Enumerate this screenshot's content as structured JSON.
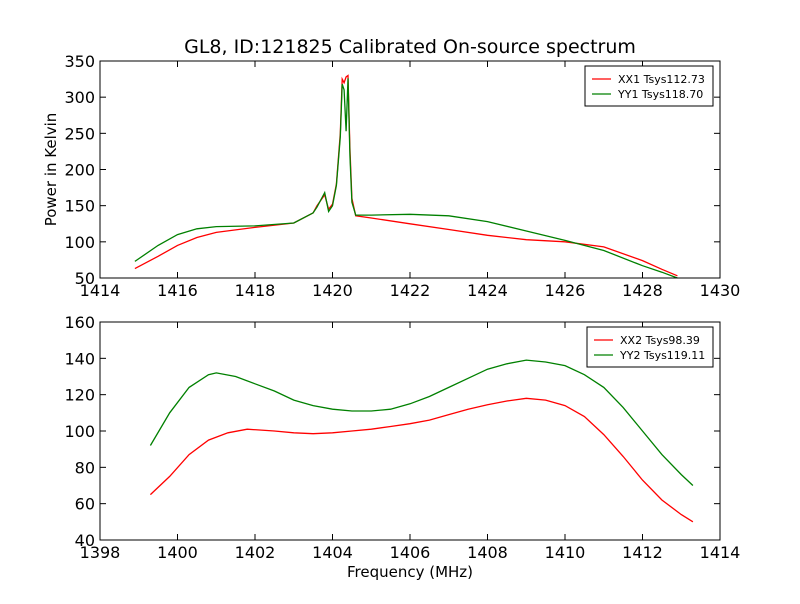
{
  "title": "GL8, ID:121825 Calibrated On-source spectrum",
  "colors": {
    "xx": "#ff0000",
    "yy": "#008000",
    "axis": "#000000",
    "background": "#ffffff"
  },
  "chart_data": [
    {
      "type": "line",
      "ylabel": "Power in Kelvin",
      "xlabel": "",
      "xlim": [
        1414,
        1430
      ],
      "ylim": [
        50,
        350
      ],
      "xticks": [
        1414,
        1416,
        1418,
        1420,
        1422,
        1424,
        1426,
        1428,
        1430
      ],
      "yticks": [
        50,
        100,
        150,
        200,
        250,
        300,
        350
      ],
      "grid": false,
      "legend_position": "top-right",
      "series": [
        {
          "name": "XX1 Tsys112.73",
          "color": "#ff0000",
          "x": [
            1414.9,
            1415.5,
            1416.0,
            1416.5,
            1417.0,
            1418.0,
            1419.0,
            1419.5,
            1419.6,
            1419.8,
            1419.9,
            1420.0,
            1420.1,
            1420.2,
            1420.25,
            1420.3,
            1420.35,
            1420.4,
            1420.45,
            1420.5,
            1420.6,
            1421.0,
            1422.0,
            1423.0,
            1424.0,
            1425.0,
            1426.0,
            1427.0,
            1428.0,
            1428.5,
            1428.9
          ],
          "y": [
            63,
            80,
            95,
            106,
            113,
            120,
            126,
            140,
            150,
            165,
            145,
            152,
            180,
            250,
            325,
            320,
            328,
            330,
            230,
            160,
            136,
            133,
            125,
            117,
            109,
            103,
            100,
            93,
            74,
            62,
            53
          ]
        },
        {
          "name": "YY1 Tsys118.70",
          "color": "#008000",
          "x": [
            1414.9,
            1415.5,
            1416.0,
            1416.5,
            1417.0,
            1418.0,
            1419.0,
            1419.5,
            1419.6,
            1419.8,
            1419.9,
            1420.0,
            1420.1,
            1420.2,
            1420.25,
            1420.3,
            1420.35,
            1420.4,
            1420.45,
            1420.5,
            1420.6,
            1421.0,
            1422.0,
            1423.0,
            1424.0,
            1425.0,
            1426.0,
            1427.0,
            1428.0,
            1428.5,
            1428.9
          ],
          "y": [
            73,
            95,
            110,
            118,
            121,
            122,
            126,
            140,
            148,
            168,
            142,
            150,
            178,
            245,
            318,
            310,
            253,
            326,
            220,
            155,
            137,
            137,
            138,
            136,
            128,
            115,
            102,
            88,
            67,
            58,
            50
          ]
        }
      ]
    },
    {
      "type": "line",
      "ylabel": "",
      "xlabel": "Frequency (MHz)",
      "xlim": [
        1398,
        1414
      ],
      "ylim": [
        40,
        160
      ],
      "xticks": [
        1398,
        1400,
        1402,
        1404,
        1406,
        1408,
        1410,
        1412,
        1414
      ],
      "yticks": [
        40,
        60,
        80,
        100,
        120,
        140,
        160
      ],
      "grid": false,
      "legend_position": "top-right",
      "series": [
        {
          "name": "XX2 Tsys98.39",
          "color": "#ff0000",
          "x": [
            1399.3,
            1399.8,
            1400.3,
            1400.8,
            1401.3,
            1401.8,
            1402.5,
            1403.0,
            1403.5,
            1404.0,
            1404.5,
            1405.0,
            1405.5,
            1406.0,
            1406.5,
            1407.0,
            1407.5,
            1408.0,
            1408.5,
            1409.0,
            1409.5,
            1410.0,
            1410.5,
            1411.0,
            1411.5,
            1412.0,
            1412.5,
            1413.0,
            1413.3
          ],
          "y": [
            65,
            75,
            87,
            95,
            99,
            101,
            100,
            99,
            98.5,
            99,
            100,
            101,
            102.5,
            104,
            106,
            109,
            112,
            114.5,
            116.5,
            118,
            117,
            114,
            108,
            98,
            86,
            73,
            62,
            54,
            50
          ]
        },
        {
          "name": "YY2 Tsys119.11",
          "color": "#008000",
          "x": [
            1399.3,
            1399.8,
            1400.3,
            1400.8,
            1401.0,
            1401.5,
            1402.0,
            1402.5,
            1403.0,
            1403.5,
            1404.0,
            1404.5,
            1405.0,
            1405.5,
            1406.0,
            1406.5,
            1407.0,
            1407.5,
            1408.0,
            1408.5,
            1409.0,
            1409.5,
            1410.0,
            1410.5,
            1411.0,
            1411.5,
            1412.0,
            1412.5,
            1413.0,
            1413.3
          ],
          "y": [
            92,
            110,
            124,
            131,
            132,
            130,
            126,
            122,
            117,
            114,
            112,
            111,
            111,
            112,
            115,
            119,
            124,
            129,
            134,
            137,
            139,
            138,
            136,
            131,
            124,
            113,
            100,
            87,
            76,
            70
          ]
        }
      ]
    }
  ]
}
